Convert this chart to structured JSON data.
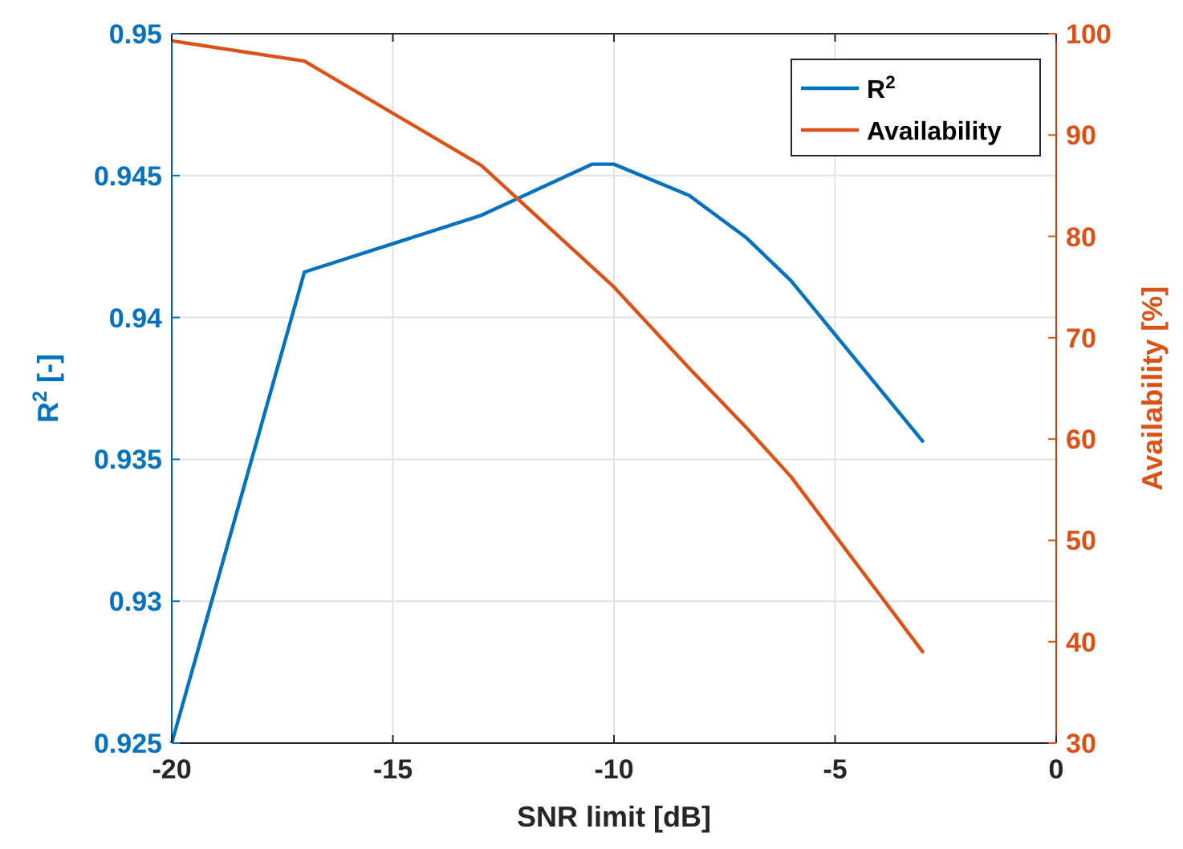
{
  "chart_data": {
    "type": "line",
    "xlabel": "SNR limit [dB]",
    "ylabel": "R$^{2}$ [-]",
    "y2label": "Availability [%]",
    "xlim": [
      -20,
      0
    ],
    "xticks": [
      -20,
      -15,
      -10,
      -5,
      0
    ],
    "ylim": [
      0.925,
      0.95
    ],
    "yticks": [
      0.925,
      0.93,
      0.935,
      0.94,
      0.945,
      0.95
    ],
    "y2lim": [
      30,
      100
    ],
    "y2ticks": [
      30,
      40,
      50,
      60,
      70,
      80,
      90,
      100
    ],
    "grid": true,
    "legend": "top right",
    "line_style": "solid",
    "series": [
      {
        "name": "R$^{2}$",
        "color": "#0072bd",
        "x": [
          -20,
          -17,
          -13,
          -10.5,
          -10,
          -8.3,
          -7,
          -6,
          -3
        ],
        "values": [
          0.925,
          0.9416,
          0.9436,
          0.9454,
          0.9454,
          0.9443,
          0.9428,
          0.9413,
          0.9356
        ]
      },
      {
        "name": "Availability",
        "color": "#d95319",
        "axis": "y2",
        "x": [
          -20,
          -17,
          -13,
          -10,
          -8.3,
          -7,
          -6,
          -3
        ],
        "values": [
          99.3,
          97.3,
          87.0,
          75.0,
          67.0,
          61.1,
          56.3,
          38.9
        ]
      }
    ]
  }
}
